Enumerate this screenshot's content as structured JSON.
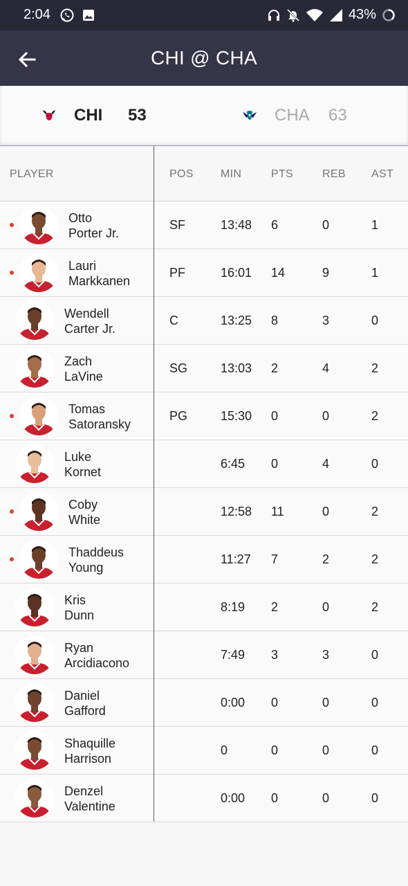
{
  "status_bar": {
    "time": "2:04",
    "battery": "43%",
    "icons": [
      "whatsapp-icon",
      "image-icon",
      "headphones-icon",
      "mute-icon",
      "wifi-icon",
      "signal-icon",
      "battery-icon"
    ]
  },
  "app_bar": {
    "title": "CHI @ CHA",
    "back_icon": "arrow-left-icon"
  },
  "scoreboard": {
    "home": {
      "abbr": "CHI",
      "score": "53",
      "logo": "bulls-logo"
    },
    "away": {
      "abbr": "CHA",
      "score": "63",
      "logo": "hornets-logo"
    }
  },
  "table": {
    "headers": {
      "player": "PLAYER",
      "pos": "POS",
      "min": "MIN",
      "pts": "PTS",
      "reb": "REB",
      "ast": "AST"
    },
    "rows": [
      {
        "first": "Otto",
        "last": "Porter Jr.",
        "pos": "SF",
        "min": "13:48",
        "pts": "6",
        "reb": "0",
        "ast": "1",
        "on_court": true
      },
      {
        "first": "Lauri",
        "last": "Markkanen",
        "pos": "PF",
        "min": "16:01",
        "pts": "14",
        "reb": "9",
        "ast": "1",
        "on_court": true
      },
      {
        "first": "Wendell",
        "last": "Carter Jr.",
        "pos": "C",
        "min": "13:25",
        "pts": "8",
        "reb": "3",
        "ast": "0",
        "on_court": false
      },
      {
        "first": "Zach",
        "last": "LaVine",
        "pos": "SG",
        "min": "13:03",
        "pts": "2",
        "reb": "4",
        "ast": "2",
        "on_court": false
      },
      {
        "first": "Tomas",
        "last": "Satoransky",
        "pos": "PG",
        "min": "15:30",
        "pts": "0",
        "reb": "0",
        "ast": "2",
        "on_court": true
      },
      {
        "first": "Luke",
        "last": "Kornet",
        "pos": "",
        "min": "6:45",
        "pts": "0",
        "reb": "4",
        "ast": "0",
        "on_court": false
      },
      {
        "first": "Coby",
        "last": "White",
        "pos": "",
        "min": "12:58",
        "pts": "11",
        "reb": "0",
        "ast": "2",
        "on_court": true
      },
      {
        "first": "Thaddeus",
        "last": "Young",
        "pos": "",
        "min": "11:27",
        "pts": "7",
        "reb": "2",
        "ast": "2",
        "on_court": true
      },
      {
        "first": "Kris",
        "last": "Dunn",
        "pos": "",
        "min": "8:19",
        "pts": "2",
        "reb": "0",
        "ast": "2",
        "on_court": false
      },
      {
        "first": "Ryan",
        "last": "Arcidiacono",
        "pos": "",
        "min": "7:49",
        "pts": "3",
        "reb": "3",
        "ast": "0",
        "on_court": false
      },
      {
        "first": "Daniel",
        "last": "Gafford",
        "pos": "",
        "min": "0:00",
        "pts": "0",
        "reb": "0",
        "ast": "0",
        "on_court": false
      },
      {
        "first": "Shaquille",
        "last": "Harrison",
        "pos": "",
        "min": "0",
        "pts": "0",
        "reb": "0",
        "ast": "0",
        "on_court": false
      },
      {
        "first": "Denzel",
        "last": "Valentine",
        "pos": "",
        "min": "0:00",
        "pts": "0",
        "reb": "0",
        "ast": "0",
        "on_court": false
      }
    ]
  },
  "colors": {
    "status_bar": "#272937",
    "app_bar": "#353549",
    "on_court_dot": "#e0402f",
    "jersey_red": "#c8202f"
  }
}
